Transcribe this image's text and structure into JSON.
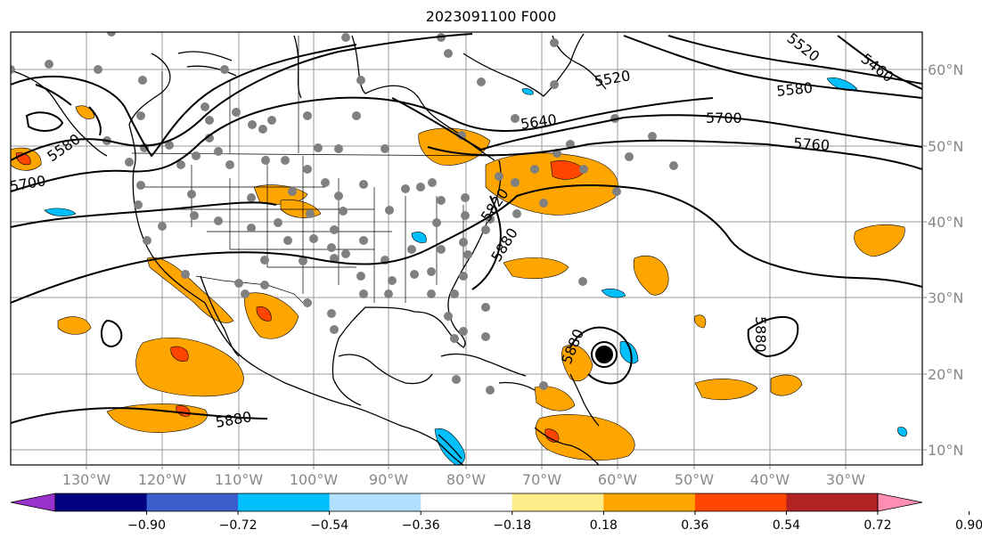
{
  "title": "2023091100 F000",
  "map": {
    "lon_range": [
      -138,
      -17
    ],
    "lat_range": [
      8,
      65
    ],
    "lon_ticks": [
      {
        "lon": -130,
        "label": "130°W"
      },
      {
        "lon": -120,
        "label": "120°W"
      },
      {
        "lon": -110,
        "label": "110°W"
      },
      {
        "lon": -100,
        "label": "100°W"
      },
      {
        "lon": -90,
        "label": "90°W"
      },
      {
        "lon": -80,
        "label": "80°W"
      },
      {
        "lon": -70,
        "label": "70°W"
      },
      {
        "lon": -60,
        "label": "60°W"
      },
      {
        "lon": -50,
        "label": "50°W"
      },
      {
        "lon": -40,
        "label": "40°W"
      },
      {
        "lon": -30,
        "label": "30°W"
      }
    ],
    "lat_ticks": [
      {
        "lat": 10,
        "label": "10°N"
      },
      {
        "lat": 20,
        "label": "20°N"
      },
      {
        "lat": 30,
        "label": "30°N"
      },
      {
        "lat": 40,
        "label": "40°N"
      },
      {
        "lat": 50,
        "label": "50°N"
      },
      {
        "lat": 60,
        "label": "60°N"
      }
    ],
    "grid": true
  },
  "contour_labels": [
    "5460",
    "5520",
    "5520",
    "5580",
    "5580",
    "5640",
    "5700",
    "5700",
    "5760",
    "5880",
    "5880",
    "5880",
    "5880",
    "5820"
  ],
  "colorbar": {
    "colors": [
      "#9932cc",
      "#000080",
      "#3a5fcd",
      "#00bfff",
      "#b0e2ff",
      "#ffffff",
      "#ffec8b",
      "#ffa500",
      "#ff4500",
      "#b22222",
      "#ff8eb2"
    ],
    "labels": [
      "−0.90",
      "−0.72",
      "−0.54",
      "−0.36",
      "−0.18",
      "0.18",
      "0.36",
      "0.54",
      "0.72",
      "0.90"
    ]
  }
}
